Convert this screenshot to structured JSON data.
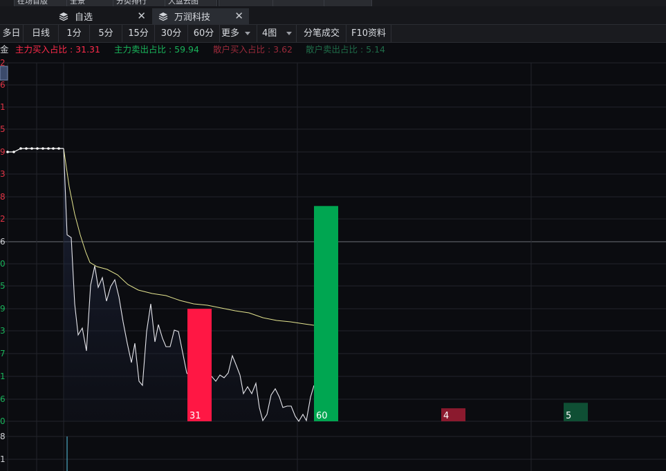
{
  "top_chips": [
    "在场首版",
    "全景",
    "分类排行",
    "大盘云图"
  ],
  "tabs": [
    {
      "label": "自选",
      "active": false
    },
    {
      "label": "万润科技",
      "active": true
    }
  ],
  "toolbar": {
    "buttons": [
      "多日",
      "日线",
      "1分",
      "5分",
      "15分",
      "30分",
      "60分",
      "更多",
      "4图",
      "分笔成交",
      "F10资料"
    ]
  },
  "ratios": {
    "prefix": "金",
    "main_buy": "主力买入占比 : 31.31",
    "main_sell": "主力卖出占比 : 59.94",
    "retail_buy": "散户买入占比 : 3.62",
    "retail_sell": "散户卖出占比 : 5.14"
  },
  "colors": {
    "red": "#ff1744",
    "green": "#00a651",
    "dark_red": "#8b1a2e",
    "dark_green": "#0f4f34",
    "avg_line": "#e6e690",
    "price_line": "#e8e8ee"
  },
  "axis_labels": [
    {
      "text": "2",
      "color": "#e03344"
    },
    {
      "text": "6",
      "color": "#e03344"
    },
    {
      "text": "1",
      "color": "#e03344"
    },
    {
      "text": "5",
      "color": "#e03344"
    },
    {
      "text": "9",
      "color": "#e03344"
    },
    {
      "text": "3",
      "color": "#e03344"
    },
    {
      "text": "8",
      "color": "#e03344"
    },
    {
      "text": "2",
      "color": "#e03344"
    },
    {
      "text": "6",
      "color": "#d0d2d6"
    },
    {
      "text": "0",
      "color": "#19b35a"
    },
    {
      "text": "5",
      "color": "#19b35a"
    },
    {
      "text": "9",
      "color": "#19b35a"
    },
    {
      "text": "3",
      "color": "#19b35a"
    },
    {
      "text": "7",
      "color": "#19b35a"
    },
    {
      "text": "1",
      "color": "#19b35a"
    },
    {
      "text": "6",
      "color": "#19b35a"
    },
    {
      "text": "0",
      "color": "#19b35a"
    },
    {
      "text": "8",
      "color": "#d0d2d6"
    },
    {
      "text": "1",
      "color": "#d0d2d6"
    }
  ],
  "chart_data": {
    "type": "bar",
    "categories": [
      "主力买入",
      "主力卖出",
      "散户买入",
      "散户卖出"
    ],
    "values": [
      31.31,
      59.94,
      3.62,
      5.14
    ],
    "bar_labels": [
      "31",
      "60",
      "4",
      "5"
    ]
  }
}
